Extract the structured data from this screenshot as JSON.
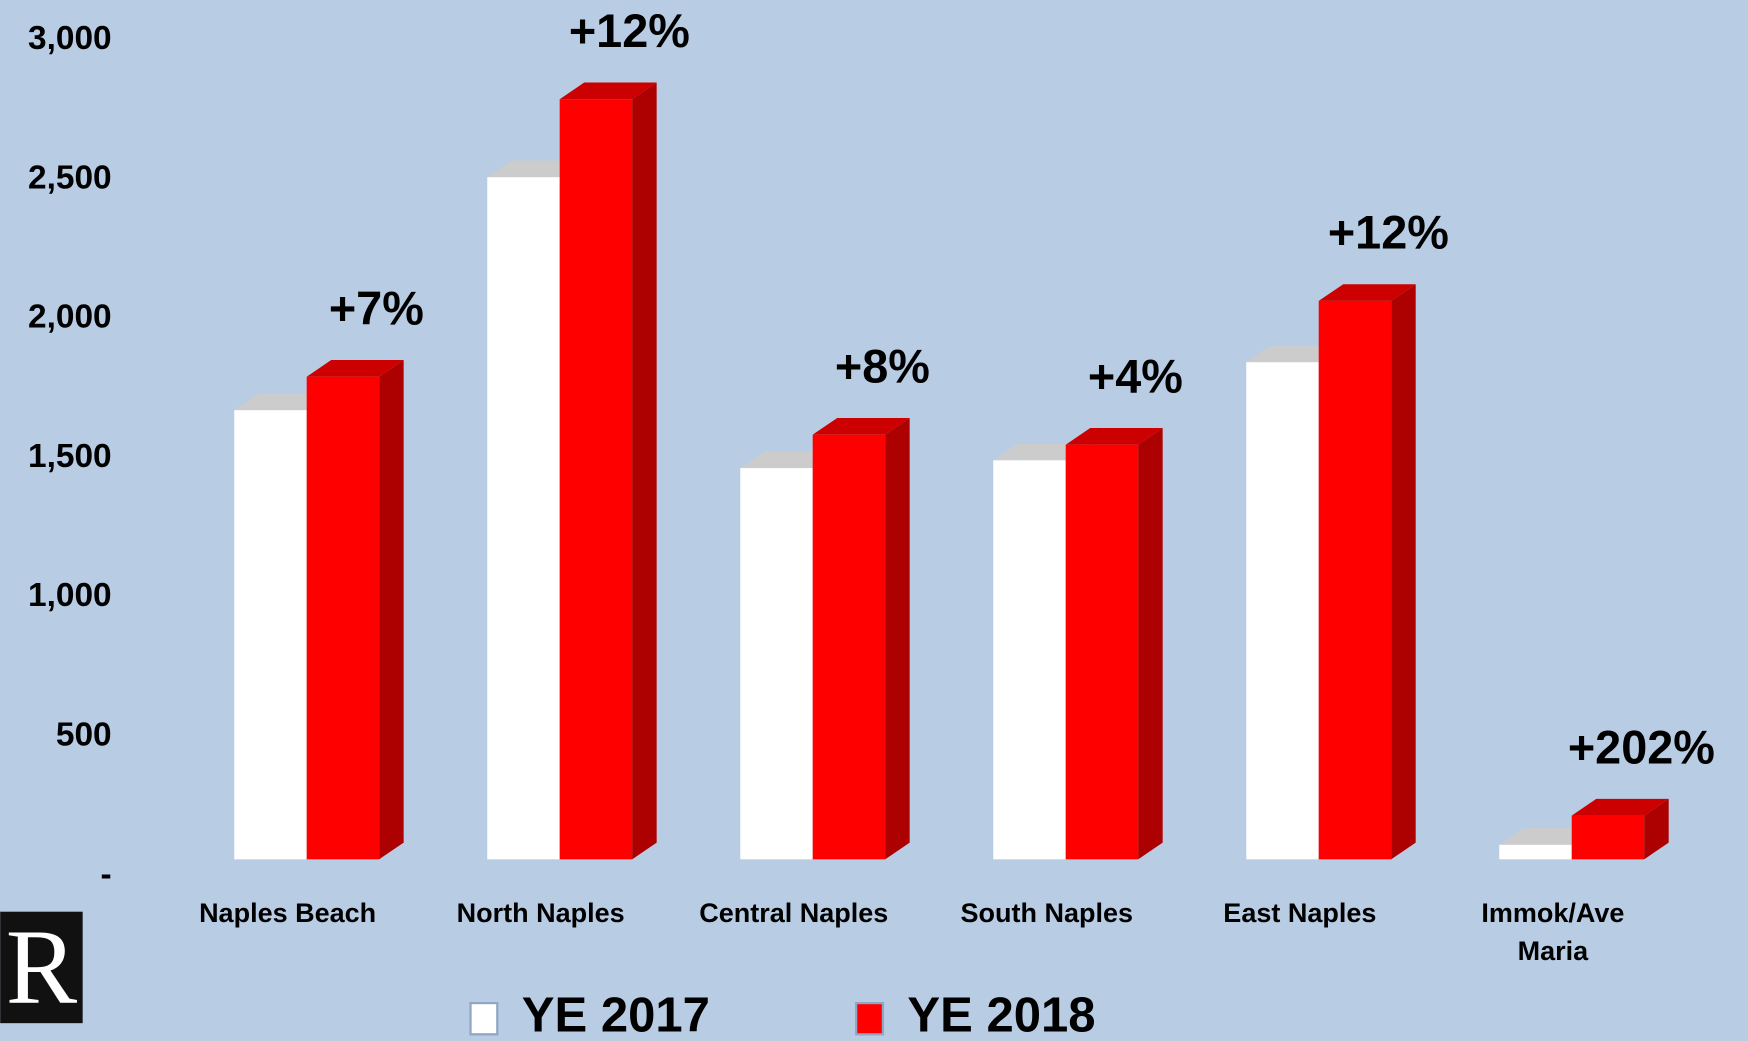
{
  "chart_data": {
    "type": "bar",
    "categories": [
      "Naples Beach",
      "North Naples",
      "Central Naples",
      "South Naples",
      "East Naples",
      "Immok/Ave\nMaria"
    ],
    "series": [
      {
        "name": "YE 2017",
        "color": "#ffffff",
        "values": [
          1612,
          2448,
          1404,
          1432,
          1784,
          52
        ]
      },
      {
        "name": "YE 2018",
        "color": "#ff0000",
        "values": [
          1732,
          2728,
          1524,
          1488,
          2004,
          157
        ]
      }
    ],
    "annotations": [
      "+7%",
      "+12%",
      "+8%",
      "+4%",
      "+12%",
      "+202%"
    ],
    "ylim": [
      0,
      3000
    ],
    "yticks": [
      {
        "value": 0,
        "label": "-"
      },
      500,
      {
        "value": 1000,
        "label": "1,000"
      },
      {
        "value": 1500,
        "label": "1,500"
      },
      {
        "value": 2000,
        "label": "2,000"
      },
      {
        "value": 2500,
        "label": "2,500"
      },
      {
        "value": 3000,
        "label": "3,000"
      }
    ],
    "legend": "bottom",
    "logo": "R"
  }
}
